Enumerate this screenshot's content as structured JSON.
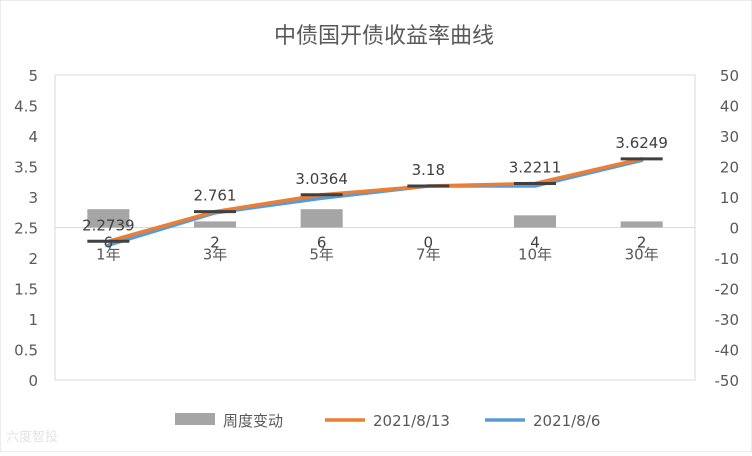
{
  "chart_data": {
    "type": "bar+line",
    "title": "中债国开债收益率曲线",
    "categories": [
      "1年",
      "3年",
      "5年",
      "7年",
      "10年",
      "30年"
    ],
    "y_left": {
      "ylim": [
        0,
        5
      ],
      "ticks": [
        "0",
        "0.5",
        "1",
        "1.5",
        "2",
        "2.5",
        "3",
        "3.5",
        "4",
        "4.5",
        "5"
      ]
    },
    "y_right": {
      "ylim": [
        -50,
        50
      ],
      "ticks": [
        "-50",
        "-40",
        "-30",
        "-20",
        "-10",
        "0",
        "10",
        "20",
        "30",
        "40",
        "50"
      ]
    },
    "series": [
      {
        "name": "周度变动",
        "type": "bar",
        "axis": "right",
        "values": [
          6,
          2,
          6,
          0,
          4,
          2
        ],
        "labels": [
          "6",
          "2",
          "6",
          "0",
          "4",
          "2"
        ],
        "color": "#a5a5a5"
      },
      {
        "name": "2021/8/13",
        "type": "line",
        "axis": "left",
        "values": [
          2.2739,
          2.761,
          3.0364,
          3.18,
          3.2211,
          3.6249
        ],
        "labels": [
          "2.2739",
          "2.761",
          "3.0364",
          "3.18",
          "3.2211",
          "3.6249"
        ],
        "color": "#ed7d31"
      },
      {
        "name": "2021/8/6",
        "type": "line",
        "axis": "left",
        "values": [
          2.21,
          2.74,
          2.98,
          3.18,
          3.18,
          3.6
        ],
        "color": "#5b9bd5"
      }
    ],
    "grid": false,
    "legend_position": "bottom"
  },
  "watermark": "六度智投"
}
